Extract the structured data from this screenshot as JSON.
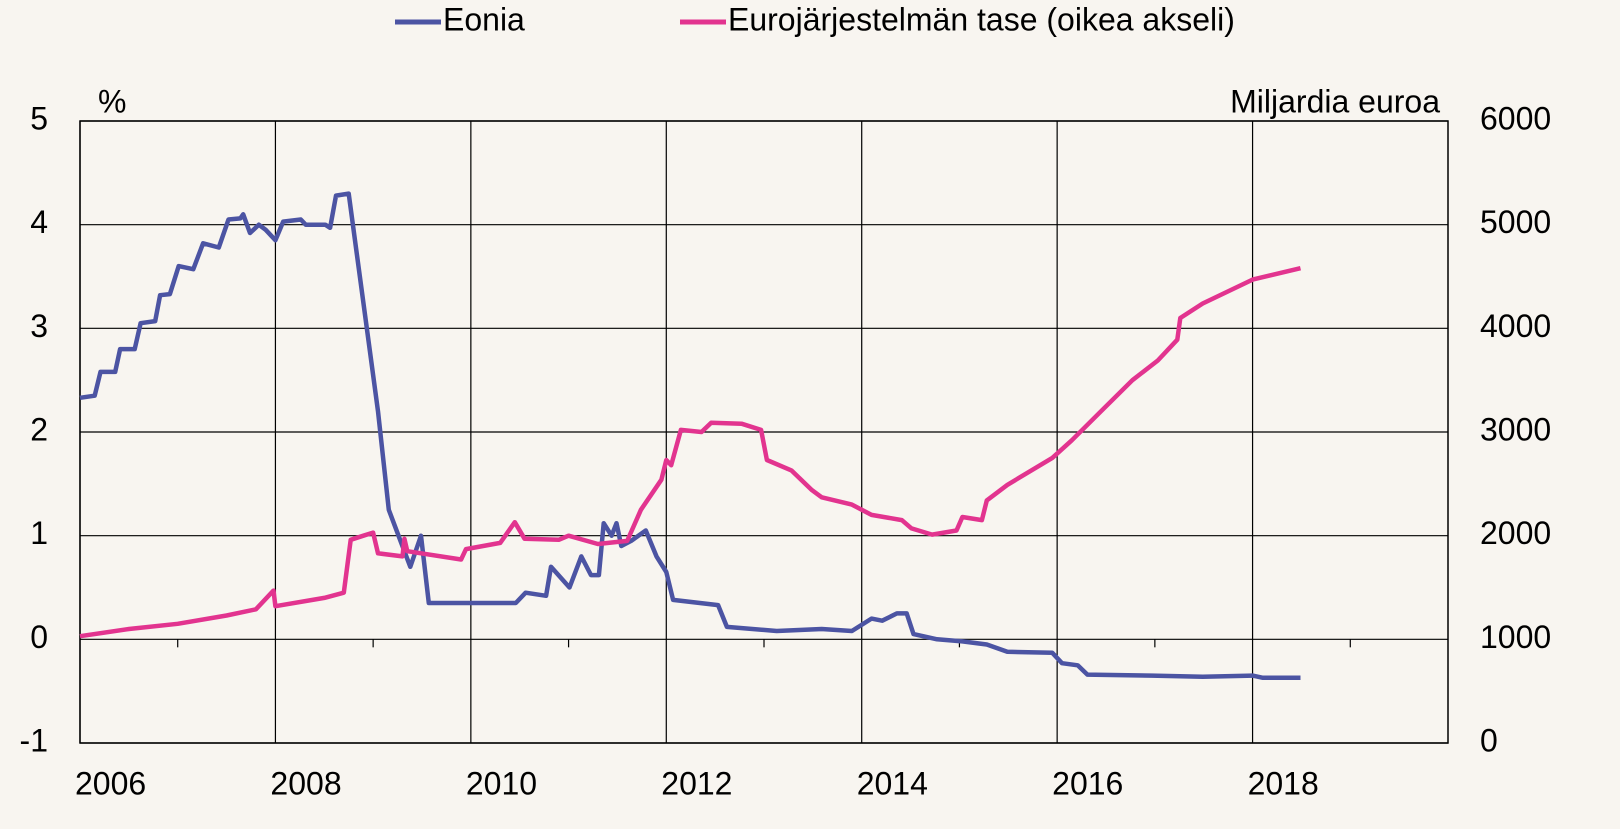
{
  "chart_data": {
    "type": "line",
    "y_label": "%",
    "y2_label": "Miljardia euroa",
    "xlim": [
      2006,
      2020
    ],
    "xticks": [
      2006,
      2008,
      2010,
      2012,
      2014,
      2016,
      2018
    ],
    "ylim": [
      -1,
      5
    ],
    "yticks": [
      -1,
      0,
      1,
      2,
      3,
      4,
      5
    ],
    "y2lim": [
      0,
      6000
    ],
    "y2ticks": [
      0,
      1000,
      2000,
      3000,
      4000,
      5000,
      6000
    ],
    "grid": true,
    "legend": "top",
    "series": [
      {
        "name": "Eonia",
        "color": "#4c54a3",
        "axis": "y",
        "x": [
          2006.0,
          2006.15,
          2006.21,
          2006.36,
          2006.41,
          2006.56,
          2006.62,
          2006.77,
          2006.82,
          2006.92,
          2007.01,
          2007.16,
          2007.26,
          2007.42,
          2007.52,
          2007.64,
          2007.67,
          2007.74,
          2007.83,
          2007.9,
          2008.0,
          2008.08,
          2008.26,
          2008.31,
          2008.51,
          2008.56,
          2008.62,
          2008.75,
          2009.05,
          2009.16,
          2009.28,
          2009.38,
          2009.49,
          2009.57,
          2010.46,
          2010.56,
          2010.77,
          2010.82,
          2011.01,
          2011.13,
          2011.23,
          2011.31,
          2011.36,
          2011.44,
          2011.49,
          2011.54,
          2011.64,
          2011.79,
          2011.9,
          2012.0,
          2012.07,
          2012.53,
          2012.62,
          2013.13,
          2013.59,
          2013.9,
          2014.1,
          2014.21,
          2014.36,
          2014.46,
          2014.53,
          2014.77,
          2015.03,
          2015.28,
          2015.49,
          2015.95,
          2016.05,
          2016.21,
          2016.31,
          2016.97,
          2017.49,
          2018.0,
          2018.1,
          2018.49
        ],
        "values": [
          2.33,
          2.35,
          2.58,
          2.58,
          2.8,
          2.8,
          3.05,
          3.07,
          3.32,
          3.33,
          3.6,
          3.57,
          3.82,
          3.78,
          4.05,
          4.06,
          4.1,
          3.92,
          4.0,
          3.95,
          3.85,
          4.03,
          4.05,
          4.0,
          4.0,
          3.97,
          4.28,
          4.3,
          2.2,
          1.25,
          0.95,
          0.7,
          1.0,
          0.35,
          0.35,
          0.45,
          0.42,
          0.7,
          0.5,
          0.8,
          0.62,
          0.62,
          1.12,
          1.0,
          1.12,
          0.9,
          0.95,
          1.05,
          0.8,
          0.65,
          0.38,
          0.33,
          0.12,
          0.08,
          0.1,
          0.08,
          0.2,
          0.18,
          0.25,
          0.25,
          0.05,
          0.0,
          -0.02,
          -0.05,
          -0.12,
          -0.13,
          -0.23,
          -0.25,
          -0.34,
          -0.35,
          -0.36,
          -0.35,
          -0.37,
          -0.37
        ]
      },
      {
        "name": "Eurojärjestelmän tase (oikea akseli)",
        "color": "#e2348f",
        "axis": "y2",
        "x": [
          2006.0,
          2006.5,
          2007.0,
          2007.5,
          2007.8,
          2007.98,
          2008.0,
          2008.5,
          2008.7,
          2008.77,
          2008.9,
          2009.0,
          2009.05,
          2009.3,
          2009.32,
          2009.35,
          2009.9,
          2009.95,
          2010.3,
          2010.45,
          2010.55,
          2010.9,
          2011.0,
          2011.3,
          2011.6,
          2011.74,
          2011.95,
          2012.0,
          2012.05,
          2012.15,
          2012.36,
          2012.46,
          2012.77,
          2012.97,
          2013.03,
          2013.28,
          2013.49,
          2013.59,
          2013.9,
          2014.1,
          2014.41,
          2014.51,
          2014.72,
          2014.97,
          2015.03,
          2015.23,
          2015.28,
          2015.49,
          2015.95,
          2016.15,
          2016.46,
          2016.77,
          2017.03,
          2017.23,
          2017.26,
          2017.49,
          2018.0,
          2018.49
        ],
        "values": [
          1030,
          1100,
          1150,
          1230,
          1290,
          1470,
          1320,
          1400,
          1450,
          1960,
          2000,
          2030,
          1830,
          1800,
          1970,
          1850,
          1770,
          1870,
          1930,
          2130,
          1970,
          1960,
          2000,
          1920,
          1950,
          2250,
          2540,
          2730,
          2680,
          3020,
          3000,
          3090,
          3080,
          3020,
          2730,
          2630,
          2440,
          2370,
          2300,
          2200,
          2150,
          2070,
          2010,
          2050,
          2180,
          2150,
          2340,
          2490,
          2750,
          2920,
          3210,
          3500,
          3690,
          3890,
          4100,
          4240,
          4470,
          4580
        ]
      }
    ]
  }
}
